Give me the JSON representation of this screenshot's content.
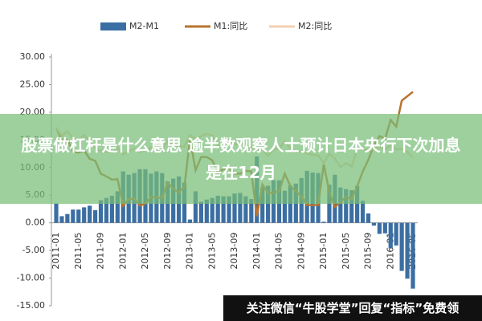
{
  "chart_data": {
    "type": "bar-line",
    "categories": [
      "2011-01",
      null,
      null,
      null,
      "2011-05",
      null,
      null,
      null,
      "2011-09",
      null,
      null,
      null,
      "2012-01",
      null,
      null,
      null,
      "2012-05",
      null,
      null,
      null,
      "2012-09",
      null,
      null,
      null,
      "2013-01",
      null,
      null,
      null,
      "2013-05",
      null,
      null,
      null,
      "2013-09",
      null,
      null,
      null,
      "2014-01",
      null,
      null,
      null,
      "2014-05",
      null,
      null,
      null,
      "2014-09",
      null,
      null,
      null,
      "2015-01",
      null,
      null,
      null,
      "2015-05",
      null,
      null,
      null,
      "2015-09",
      null,
      null,
      null,
      "2016-01",
      null,
      null,
      null,
      "2016-05"
    ],
    "series": [
      {
        "name": "M2-M1",
        "kind": "bar",
        "color": "#3b6fa3",
        "values": [
          3.5,
          1.2,
          1.6,
          2.4,
          2.4,
          2.8,
          3.1,
          2.3,
          4.1,
          4.5,
          4.9,
          5.7,
          9.3,
          8.7,
          9.0,
          9.7,
          9.7,
          8.9,
          9.3,
          9.0,
          7.5,
          8.0,
          8.4,
          7.3,
          0.6,
          5.7,
          3.8,
          4.2,
          4.5,
          4.9,
          4.8,
          4.8,
          5.3,
          5.4,
          4.8,
          4.3,
          12.0,
          6.4,
          6.7,
          7.7,
          7.7,
          5.8,
          6.8,
          7.1,
          8.1,
          9.4,
          9.1,
          9.0,
          0.2,
          6.9,
          8.7,
          6.4,
          6.1,
          5.9,
          6.7,
          4.0,
          1.7,
          -0.5,
          -2.0,
          -1.9,
          -4.6,
          -4.1,
          -8.7,
          -10.1,
          -11.9
        ]
      },
      {
        "name": "M1:同比",
        "kind": "line",
        "color": "#b8732e",
        "values": [
          17.2,
          15.0,
          15.0,
          12.9,
          12.7,
          13.1,
          11.6,
          11.2,
          8.9,
          8.4,
          7.8,
          7.9,
          3.1,
          4.3,
          4.4,
          3.1,
          3.5,
          4.7,
          4.6,
          4.5,
          7.3,
          6.1,
          5.5,
          6.5,
          15.3,
          9.5,
          11.9,
          11.9,
          11.3,
          9.1,
          9.7,
          9.9,
          8.9,
          8.9,
          9.4,
          9.3,
          1.2,
          6.9,
          5.4,
          5.5,
          5.7,
          8.9,
          6.7,
          5.7,
          4.8,
          3.2,
          3.2,
          3.2,
          10.6,
          5.6,
          2.9,
          3.7,
          4.7,
          4.3,
          6.6,
          9.3,
          11.4,
          14.0,
          15.7,
          15.2,
          18.6,
          17.4,
          22.1,
          22.9,
          23.7
        ]
      },
      {
        "name": "M2:同比",
        "kind": "line",
        "color": "#f3cfb0",
        "values": [
          17.2,
          15.7,
          16.6,
          15.3,
          15.1,
          15.9,
          14.7,
          13.5,
          13.0,
          12.9,
          12.7,
          13.6,
          12.4,
          13.0,
          13.4,
          12.8,
          13.2,
          13.6,
          13.9,
          13.5,
          14.8,
          14.1,
          13.9,
          13.8,
          15.9,
          15.2,
          15.7,
          16.1,
          15.8,
          14.0,
          14.5,
          14.7,
          14.2,
          14.3,
          14.2,
          13.6,
          13.2,
          13.3,
          12.1,
          13.2,
          13.4,
          14.7,
          13.5,
          12.8,
          12.9,
          12.6,
          12.3,
          12.2,
          10.8,
          12.5,
          11.6,
          10.1,
          10.8,
          10.2,
          13.3,
          13.3,
          13.1,
          13.5,
          13.7,
          13.3,
          14.0,
          13.3,
          13.4,
          12.8,
          11.8
        ]
      }
    ],
    "ylim": [
      -15,
      30
    ],
    "yticks": [
      {
        "value": 30,
        "label": "30.00"
      },
      {
        "value": 25,
        "label": "25.00"
      },
      {
        "value": 20,
        "label": "20.00"
      },
      {
        "value": 15,
        "label": "15.00"
      },
      {
        "value": 10,
        "label": "10.00"
      },
      {
        "value": 5,
        "label": "5.00"
      },
      {
        "value": 0,
        "label": "0.00"
      },
      {
        "value": -5,
        "label": "-5.00"
      },
      {
        "value": -10,
        "label": "-10.00"
      },
      {
        "value": -15,
        "label": "-15.00"
      }
    ],
    "legend": "top"
  },
  "overlay": {
    "headline": "股票做杠杆是什么意思 逾半数观察人士预计日本央行下次加息是在12月",
    "watermark": "关注微信“牛股学堂”回复“指标”免费领"
  }
}
